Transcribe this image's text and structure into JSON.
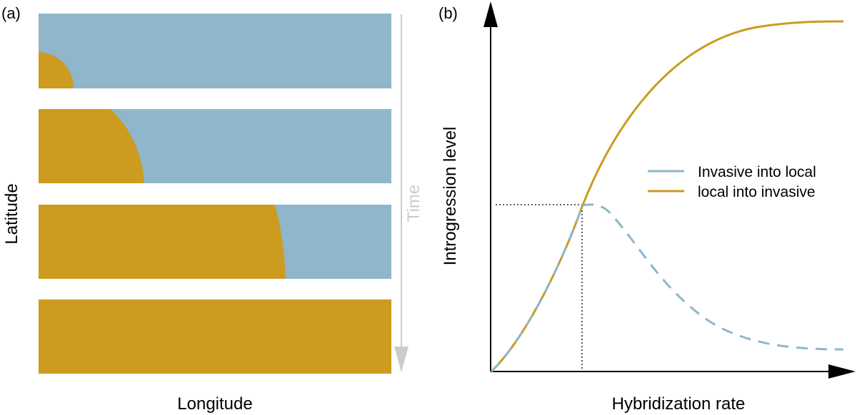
{
  "panel_a": {
    "label": "(a)",
    "y_axis_label": "Latitude",
    "x_axis_label": "Longitude",
    "time_label": "Time",
    "colors": {
      "local": "#8fb6cb",
      "invasive": "#cc9b20",
      "time_arrow": "#cccccc"
    },
    "strips": [
      {
        "invasive_extent": 0.1
      },
      {
        "invasive_extent": 0.3
      },
      {
        "invasive_extent": 0.7
      },
      {
        "invasive_extent": 1.0
      }
    ]
  },
  "panel_b": {
    "label": "(b)",
    "y_axis_label": "Introgression level",
    "x_axis_label": "Hybridization rate",
    "legend": [
      {
        "label": "Invasive into local",
        "color": "#8fb6cb",
        "style": "solid"
      },
      {
        "label": "local into invasive",
        "color": "#cc9b20",
        "style": "solid"
      }
    ]
  }
}
